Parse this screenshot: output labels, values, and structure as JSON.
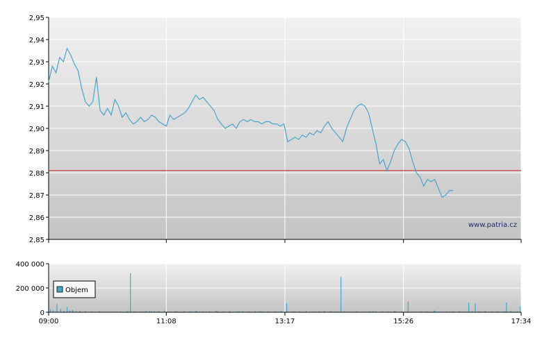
{
  "watermark": "www.patria.cz",
  "colors": {
    "line": "#4aa3cc",
    "reference": "#cc2222",
    "bar": "#4aa3cc",
    "grid": "#ffffff",
    "panel_top": "#f1f1f1",
    "panel_bottom": "#c4c4c4"
  },
  "chart_data": [
    {
      "type": "line",
      "title": "",
      "xlabel": "",
      "ylabel": "",
      "ylim": [
        2.85,
        2.95
      ],
      "y_ticks": [
        "2,85",
        "2,86",
        "2,87",
        "2,88",
        "2,89",
        "2,90",
        "2,91",
        "2,92",
        "2,93",
        "2,94",
        "2,95"
      ],
      "reference_line": 2.881,
      "grid": true,
      "series": [
        {
          "points": [
            [
              0,
              2.921
            ],
            [
              4,
              2.928
            ],
            [
              8,
              2.925
            ],
            [
              12,
              2.932
            ],
            [
              16,
              2.93
            ],
            [
              20,
              2.936
            ],
            [
              24,
              2.933
            ],
            [
              28,
              2.929
            ],
            [
              32,
              2.926
            ],
            [
              36,
              2.918
            ],
            [
              40,
              2.912
            ],
            [
              44,
              2.91
            ],
            [
              48,
              2.912
            ],
            [
              52,
              2.923
            ],
            [
              56,
              2.908
            ],
            [
              60,
              2.906
            ],
            [
              64,
              2.909
            ],
            [
              68,
              2.906
            ],
            [
              72,
              2.913
            ],
            [
              76,
              2.91
            ],
            [
              80,
              2.905
            ],
            [
              84,
              2.907
            ],
            [
              88,
              2.904
            ],
            [
              92,
              2.902
            ],
            [
              96,
              2.903
            ],
            [
              100,
              2.905
            ],
            [
              104,
              2.903
            ],
            [
              108,
              2.904
            ],
            [
              112,
              2.906
            ],
            [
              116,
              2.905
            ],
            [
              120,
              2.903
            ],
            [
              124,
              2.902
            ],
            [
              128,
              2.901
            ],
            [
              132,
              2.906
            ],
            [
              136,
              2.904
            ],
            [
              140,
              2.905
            ],
            [
              144,
              2.906
            ],
            [
              148,
              2.907
            ],
            [
              152,
              2.909
            ],
            [
              156,
              2.912
            ],
            [
              160,
              2.915
            ],
            [
              164,
              2.913
            ],
            [
              168,
              2.914
            ],
            [
              172,
              2.912
            ],
            [
              176,
              2.91
            ],
            [
              180,
              2.908
            ],
            [
              184,
              2.904
            ],
            [
              188,
              2.902
            ],
            [
              192,
              2.9
            ],
            [
              196,
              2.901
            ],
            [
              200,
              2.902
            ],
            [
              204,
              2.9
            ],
            [
              208,
              2.903
            ],
            [
              212,
              2.904
            ],
            [
              216,
              2.903
            ],
            [
              220,
              2.904
            ],
            [
              224,
              2.903
            ],
            [
              228,
              2.903
            ],
            [
              232,
              2.902
            ],
            [
              236,
              2.903
            ],
            [
              240,
              2.903
            ],
            [
              244,
              2.902
            ],
            [
              248,
              2.902
            ],
            [
              252,
              2.901
            ],
            [
              256,
              2.902
            ],
            [
              260,
              2.894
            ],
            [
              264,
              2.895
            ],
            [
              268,
              2.896
            ],
            [
              272,
              2.895
            ],
            [
              276,
              2.897
            ],
            [
              280,
              2.896
            ],
            [
              284,
              2.898
            ],
            [
              288,
              2.897
            ],
            [
              292,
              2.899
            ],
            [
              296,
              2.898
            ],
            [
              300,
              2.901
            ],
            [
              304,
              2.903
            ],
            [
              308,
              2.9
            ],
            [
              312,
              2.898
            ],
            [
              316,
              2.896
            ],
            [
              320,
              2.894
            ],
            [
              324,
              2.9
            ],
            [
              328,
              2.904
            ],
            [
              332,
              2.908
            ],
            [
              336,
              2.91
            ],
            [
              340,
              2.911
            ],
            [
              344,
              2.91
            ],
            [
              348,
              2.907
            ],
            [
              352,
              2.9
            ],
            [
              356,
              2.893
            ],
            [
              360,
              2.884
            ],
            [
              364,
              2.886
            ],
            [
              368,
              2.881
            ],
            [
              372,
              2.885
            ],
            [
              376,
              2.89
            ],
            [
              380,
              2.893
            ],
            [
              384,
              2.895
            ],
            [
              388,
              2.894
            ],
            [
              392,
              2.891
            ],
            [
              396,
              2.885
            ],
            [
              400,
              2.88
            ],
            [
              404,
              2.878
            ],
            [
              408,
              2.874
            ],
            [
              412,
              2.877
            ],
            [
              416,
              2.876
            ],
            [
              420,
              2.877
            ],
            [
              424,
              2.873
            ],
            [
              428,
              2.869
            ],
            [
              432,
              2.87
            ],
            [
              436,
              2.872
            ],
            [
              440,
              2.872
            ]
          ]
        }
      ]
    },
    {
      "type": "bar",
      "title": "",
      "xlabel": "",
      "ylabel": "",
      "ylim": [
        0,
        400000
      ],
      "y_ticks": [
        "0",
        "200 000",
        "400 000"
      ],
      "x_ticks": [
        "09:00",
        "11:08",
        "13:17",
        "15:26",
        "17:34"
      ],
      "x_tick_minutes": [
        0,
        128,
        257,
        386,
        514
      ],
      "series": [
        {
          "name": "Objem",
          "points": [
            [
              2,
              25000
            ],
            [
              5,
              18000
            ],
            [
              9,
              70000
            ],
            [
              13,
              30000
            ],
            [
              17,
              12000
            ],
            [
              20,
              45000
            ],
            [
              23,
              15000
            ],
            [
              26,
              20000
            ],
            [
              30,
              8000
            ],
            [
              34,
              12000
            ],
            [
              40,
              10000
            ],
            [
              47,
              6000
            ],
            [
              55,
              9000
            ],
            [
              62,
              7000
            ],
            [
              70,
              6000
            ],
            [
              78,
              8000
            ],
            [
              86,
              10000
            ],
            [
              93,
              7000
            ],
            [
              100,
              6000
            ],
            [
              106,
              12000
            ],
            [
              110,
              8000
            ],
            [
              115,
              6000
            ],
            [
              120,
              9000
            ],
            [
              126,
              14000
            ],
            [
              133,
              7000
            ],
            [
              140,
              6000
            ],
            [
              147,
              8000
            ],
            [
              154,
              7000
            ],
            [
              161,
              9000
            ],
            [
              168,
              6000
            ],
            [
              175,
              8000
            ],
            [
              182,
              10000
            ],
            [
              190,
              7000
            ],
            [
              197,
              12000
            ],
            [
              204,
              6000
            ],
            [
              211,
              8000
            ],
            [
              218,
              7000
            ],
            [
              225,
              9000
            ],
            [
              232,
              6000
            ],
            [
              239,
              8000
            ],
            [
              246,
              7000
            ],
            [
              253,
              10000
            ],
            [
              260,
              6000
            ],
            [
              266,
              8000
            ],
            [
              273,
              7000
            ],
            [
              280,
              9000
            ],
            [
              287,
              6000
            ],
            [
              294,
              8000
            ],
            [
              300,
              7000
            ],
            [
              307,
              9000
            ],
            [
              314,
              6000
            ],
            [
              321,
              8000
            ],
            [
              328,
              7000
            ],
            [
              335,
              10000
            ],
            [
              342,
              6000
            ],
            [
              349,
              8000
            ],
            [
              356,
              7000
            ],
            [
              363,
              9000
            ],
            [
              370,
              6000
            ],
            [
              377,
              8000
            ],
            [
              384,
              7000
            ],
            [
              391,
              10000
            ],
            [
              398,
              6000
            ],
            [
              405,
              8000
            ],
            [
              412,
              7000
            ],
            [
              419,
              9000
            ],
            [
              426,
              6000
            ],
            [
              433,
              8000
            ],
            [
              440,
              7000
            ],
            [
              447,
              9000
            ],
            [
              454,
              6000
            ],
            [
              461,
              8000
            ],
            [
              468,
              7000
            ],
            [
              475,
              10000
            ],
            [
              482,
              6000
            ],
            [
              489,
              8000
            ],
            [
              496,
              7000
            ],
            [
              503,
              9000
            ],
            [
              510,
              6000
            ],
            [
              89,
              320000
            ],
            [
              112,
              10000
            ],
            [
              138,
              10000
            ],
            [
              160,
              10000
            ],
            [
              183,
              10000
            ],
            [
              207,
              10000
            ],
            [
              230,
              10000
            ],
            [
              259,
              75000
            ],
            [
              300,
              10000
            ],
            [
              318,
              290000
            ],
            [
              353,
              10000
            ],
            [
              376,
              10000
            ],
            [
              391,
              90000
            ],
            [
              420,
              15000
            ],
            [
              457,
              80000
            ],
            [
              464,
              75000
            ],
            [
              498,
              80000
            ],
            [
              513,
              50000
            ]
          ]
        }
      ]
    }
  ]
}
